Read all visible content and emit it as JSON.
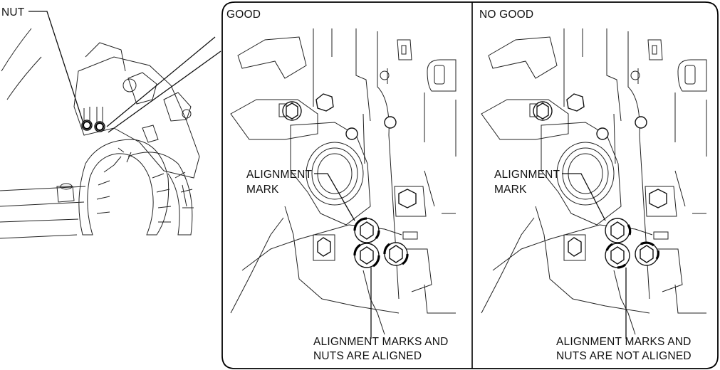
{
  "labels": {
    "nut": "NUT",
    "good_panel_title": "GOOD",
    "no_good_panel_title": "NO GOOD",
    "alignment_mark_line1": "ALIGNMENT",
    "alignment_mark_line2": "MARK",
    "good_caption_line1": "ALIGNMENT MARKS AND",
    "good_caption_line2": "NUTS ARE ALIGNED",
    "no_good_caption_line1": "ALIGNMENT MARKS AND",
    "no_good_caption_line2": "NUTS ARE NOT ALIGNED"
  },
  "icons": {
    "overview": "engine-assembly-overview",
    "detail": "bracket-with-three-nuts"
  }
}
